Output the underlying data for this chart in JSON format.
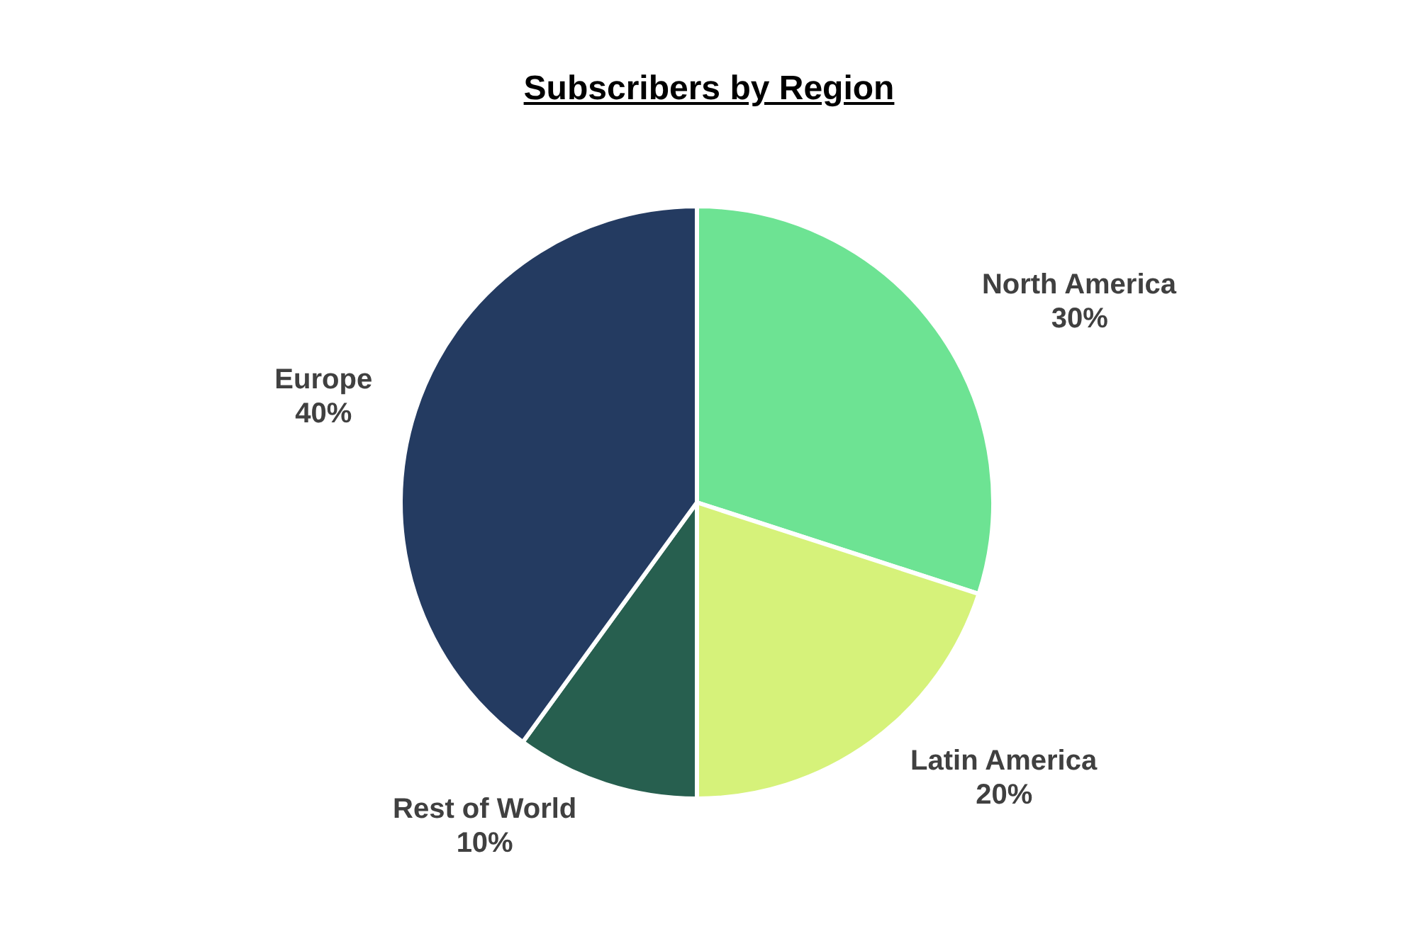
{
  "chart_data": {
    "type": "pie",
    "title": "Subscribers by Region",
    "categories": [
      "North America",
      "Latin America",
      "Rest of World",
      "Europe"
    ],
    "values": [
      30,
      20,
      10,
      40
    ],
    "colors": [
      "#6de393",
      "#d6f27a",
      "#275f4f",
      "#243b61"
    ],
    "value_labels": [
      "30%",
      "20%",
      "10%",
      "40%"
    ]
  }
}
